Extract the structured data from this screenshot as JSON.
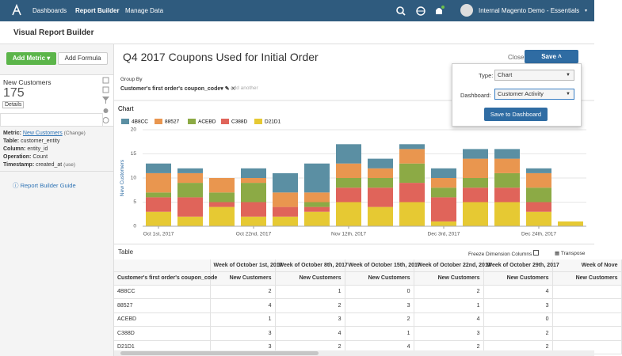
{
  "nav": {
    "items": [
      "Dashboards",
      "Report Builder",
      "Manage Data"
    ],
    "account": "Internal Magento Demo - Essentials"
  },
  "page_title": "Visual Report Builder",
  "sidebar": {
    "add_metric": "Add Metric",
    "add_formula": "Add Formula",
    "metric": {
      "name": "New Customers",
      "total": 175,
      "details": "Details"
    },
    "info": [
      {
        "label": "Metric:",
        "value": "New Customers",
        "action": "(Change)"
      },
      {
        "label": "Table:",
        "value": "customer_entity"
      },
      {
        "label": "Column:",
        "value": "entity_id"
      },
      {
        "label": "Operation:",
        "value": "Count"
      },
      {
        "label": "Timestamp:",
        "value": "created_at",
        "action": "(use)"
      }
    ],
    "guide": "Report Builder Guide"
  },
  "report": {
    "title": "Q4 2017 Coupons Used for Initial Order",
    "close": "Close",
    "save": "Save",
    "group_by": {
      "label": "Group By",
      "value": "Customer's first order's coupon_code",
      "add": "add another"
    }
  },
  "save_popover": {
    "type_label": "Type:",
    "type_value": "Chart",
    "dashboard_label": "Dashboard:",
    "dashboard_value": "Customer Activity",
    "button": "Save to Dashboard"
  },
  "chart_data": {
    "type": "stacked_bar",
    "title": "Chart",
    "y_label": "New Customers",
    "categories": [
      "Oct 1st, 2017",
      null,
      null,
      "Oct 22nd, 2017",
      null,
      null,
      "Nov 12th, 2017",
      null,
      null,
      "Dec 3rd, 2017",
      null,
      null,
      "Dec 24th, 2017",
      null
    ],
    "series": [
      {
        "name": "4B8CC",
        "color": "#5b8fa3",
        "values": [
          2,
          1,
          0,
          2,
          4,
          6,
          4,
          2,
          1,
          2,
          2,
          2,
          1,
          0
        ]
      },
      {
        "name": "88527",
        "color": "#e9964f",
        "values": [
          4,
          2,
          3,
          1,
          3,
          2,
          3,
          2,
          3,
          2,
          4,
          3,
          3,
          0
        ]
      },
      {
        "name": "ACEBD",
        "color": "#8caa45",
        "values": [
          1,
          3,
          2,
          4,
          0,
          1,
          2,
          2,
          4,
          2,
          2,
          3,
          3,
          0
        ]
      },
      {
        "name": "C388D",
        "color": "#e0645a",
        "values": [
          3,
          4,
          1,
          3,
          2,
          1,
          3,
          4,
          4,
          5,
          3,
          3,
          2,
          0
        ]
      },
      {
        "name": "D21D1",
        "color": "#e6c933",
        "values": [
          3,
          2,
          4,
          2,
          2,
          3,
          5,
          4,
          5,
          1,
          5,
          5,
          3,
          1
        ]
      }
    ],
    "ylim": [
      0,
      20
    ],
    "yticks": [
      0,
      5,
      10,
      15,
      20
    ],
    "grid": true
  },
  "table": {
    "title": "Table",
    "freeze": "Freeze Dimension Columns",
    "transpose": "Transpose",
    "dimension": "Customer's first order's coupon_code",
    "measure": "New Customers",
    "columns": [
      "Week of October 1st, 2017",
      "Week of October 8th, 2017",
      "Week of October 15th, 2017",
      "Week of October 22nd, 2017",
      "Week of October 29th, 2017",
      "Week of Nove"
    ]
  }
}
